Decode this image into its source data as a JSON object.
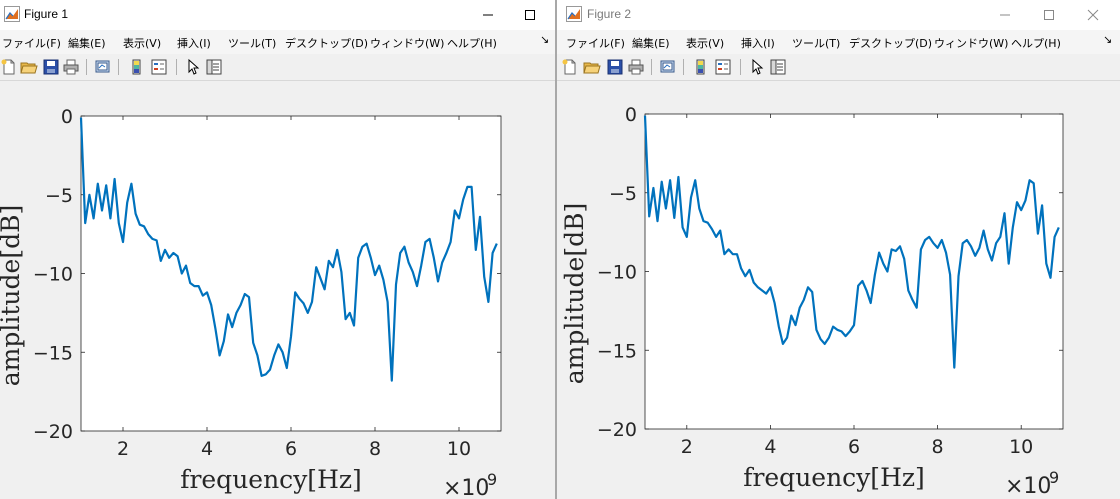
{
  "windows": [
    {
      "title": "Figure 1",
      "menu": [
        "ファイル(F)",
        "編集(E)",
        "表示(V)",
        "挿入(I)",
        "ツール(T)",
        "デスクトップ(D)",
        "ウィンドウ(W)",
        "ヘルプ(H)"
      ],
      "toolbar_icons": [
        "new-file-icon",
        "open-folder-icon",
        "save-icon",
        "print-icon",
        "link-plot-icon",
        "colorbar-icon",
        "legend-icon",
        "pointer-icon",
        "property-editor-icon"
      ],
      "chart_data": {
        "type": "line",
        "xlabel": "frequency[Hz]",
        "ylabel": "amplitude[dB]",
        "x_multiplier": "×10",
        "x_multiplier_exponent": "9",
        "xlim": [
          1,
          11
        ],
        "ylim": [
          -20,
          0
        ],
        "xticks": [
          2,
          4,
          6,
          8,
          10
        ],
        "xtick_labels": [
          "2",
          "4",
          "6",
          "8",
          "10"
        ],
        "yticks": [
          0,
          -5,
          -10,
          -15,
          -20
        ],
        "ytick_labels": [
          "0",
          "−5",
          "−10",
          "−15",
          "−20"
        ],
        "grid": false,
        "line_color": "#0072BD",
        "series": [
          {
            "x": [
              1.0,
              1.1,
              1.2,
              1.3,
              1.4,
              1.5,
              1.6,
              1.7,
              1.8,
              1.9,
              2.0,
              2.1,
              2.2,
              2.3,
              2.4,
              2.5,
              2.6,
              2.7,
              2.8,
              2.9,
              3.0,
              3.1,
              3.2,
              3.3,
              3.4,
              3.5,
              3.6,
              3.7,
              3.8,
              3.9,
              4.0,
              4.1,
              4.2,
              4.3,
              4.4,
              4.5,
              4.6,
              4.7,
              4.8,
              4.9,
              5.0,
              5.1,
              5.2,
              5.3,
              5.4,
              5.5,
              5.6,
              5.7,
              5.8,
              5.9,
              6.0,
              6.1,
              6.2,
              6.3,
              6.4,
              6.5,
              6.6,
              6.7,
              6.8,
              6.9,
              7.0,
              7.1,
              7.2,
              7.3,
              7.4,
              7.5,
              7.6,
              7.7,
              7.8,
              7.9,
              8.0,
              8.1,
              8.2,
              8.3,
              8.4,
              8.5,
              8.6,
              8.7,
              8.8,
              8.9,
              9.0,
              9.1,
              9.2,
              9.3,
              9.4,
              9.5,
              9.6,
              9.7,
              9.8,
              9.9,
              10.0,
              10.1,
              10.2,
              10.3,
              10.4,
              10.5,
              10.6,
              10.7,
              10.8,
              10.9
            ],
            "y": [
              -0.1,
              -6.8,
              -5.0,
              -6.5,
              -4.3,
              -6.0,
              -4.4,
              -6.5,
              -4.0,
              -6.8,
              -8.0,
              -5.5,
              -4.3,
              -6.2,
              -6.9,
              -7.0,
              -7.5,
              -7.8,
              -7.9,
              -9.2,
              -8.5,
              -9.0,
              -8.7,
              -8.9,
              -10.0,
              -9.5,
              -10.6,
              -10.8,
              -10.8,
              -11.4,
              -11.2,
              -12.0,
              -13.5,
              -15.2,
              -14.3,
              -12.6,
              -13.4,
              -12.5,
              -12.0,
              -11.3,
              -11.5,
              -14.4,
              -15.2,
              -16.5,
              -16.4,
              -16.1,
              -15.2,
              -14.5,
              -15.0,
              -16.0,
              -14.0,
              -11.2,
              -11.6,
              -11.9,
              -12.5,
              -11.8,
              -9.6,
              -10.3,
              -11.0,
              -9.2,
              -9.6,
              -8.5,
              -9.9,
              -12.9,
              -12.5,
              -13.3,
              -9.0,
              -8.3,
              -8.1,
              -9.0,
              -10.1,
              -9.5,
              -10.4,
              -11.8,
              -16.8,
              -10.7,
              -8.7,
              -8.3,
              -9.3,
              -9.9,
              -10.8,
              -9.5,
              -8.0,
              -7.8,
              -9.0,
              -10.5,
              -9.3,
              -8.7,
              -8.0,
              -6.0,
              -6.5,
              -5.3,
              -4.5,
              -4.5,
              -8.5,
              -6.4,
              -10.2,
              -11.8,
              -8.7,
              -8.1
            ]
          }
        ]
      }
    },
    {
      "title": "Figure 2",
      "menu": [
        "ファイル(F)",
        "編集(E)",
        "表示(V)",
        "挿入(I)",
        "ツール(T)",
        "デスクトップ(D)",
        "ウィンドウ(W)",
        "ヘルプ(H)"
      ],
      "toolbar_icons": [
        "new-file-icon",
        "open-folder-icon",
        "save-icon",
        "print-icon",
        "link-plot-icon",
        "colorbar-icon",
        "legend-icon",
        "pointer-icon",
        "property-editor-icon"
      ],
      "chart_data": {
        "type": "line",
        "xlabel": "frequency[Hz]",
        "ylabel": "amplitude[dB]",
        "x_multiplier": "×10",
        "x_multiplier_exponent": "9",
        "xlim": [
          1,
          11
        ],
        "ylim": [
          -20,
          0
        ],
        "xticks": [
          2,
          4,
          6,
          8,
          10
        ],
        "xtick_labels": [
          "2",
          "4",
          "6",
          "8",
          "10"
        ],
        "yticks": [
          0,
          -5,
          -10,
          -15,
          -20
        ],
        "ytick_labels": [
          "0",
          "−5",
          "−10",
          "−15",
          "−20"
        ],
        "grid": false,
        "line_color": "#0072BD",
        "series": [
          {
            "x": [
              1.0,
              1.1,
              1.2,
              1.3,
              1.4,
              1.5,
              1.6,
              1.7,
              1.8,
              1.9,
              2.0,
              2.1,
              2.2,
              2.3,
              2.4,
              2.5,
              2.6,
              2.7,
              2.8,
              2.9,
              3.0,
              3.1,
              3.2,
              3.3,
              3.4,
              3.5,
              3.6,
              3.7,
              3.8,
              3.9,
              4.0,
              4.1,
              4.2,
              4.3,
              4.4,
              4.5,
              4.6,
              4.7,
              4.8,
              4.9,
              5.0,
              5.1,
              5.2,
              5.3,
              5.4,
              5.5,
              5.6,
              5.7,
              5.8,
              5.9,
              6.0,
              6.1,
              6.2,
              6.3,
              6.4,
              6.5,
              6.6,
              6.7,
              6.8,
              6.9,
              7.0,
              7.1,
              7.2,
              7.3,
              7.4,
              7.5,
              7.6,
              7.7,
              7.8,
              7.9,
              8.0,
              8.1,
              8.2,
              8.3,
              8.4,
              8.5,
              8.6,
              8.7,
              8.8,
              8.9,
              9.0,
              9.1,
              9.2,
              9.3,
              9.4,
              9.5,
              9.6,
              9.7,
              9.8,
              9.9,
              10.0,
              10.1,
              10.2,
              10.3,
              10.4,
              10.5,
              10.6,
              10.7,
              10.8,
              10.9
            ],
            "y": [
              -0.1,
              -6.5,
              -4.7,
              -6.8,
              -4.3,
              -6.0,
              -4.2,
              -6.6,
              -4.0,
              -7.2,
              -7.8,
              -5.3,
              -4.2,
              -6.0,
              -6.8,
              -6.9,
              -7.3,
              -7.8,
              -7.4,
              -8.9,
              -8.6,
              -8.9,
              -8.9,
              -9.8,
              -10.3,
              -9.9,
              -10.7,
              -11.0,
              -11.2,
              -11.4,
              -11.0,
              -12.0,
              -13.5,
              -14.6,
              -14.2,
              -12.8,
              -13.4,
              -12.3,
              -11.8,
              -11.0,
              -11.3,
              -13.7,
              -14.3,
              -14.6,
              -14.2,
              -13.5,
              -13.7,
              -13.8,
              -14.1,
              -13.8,
              -13.4,
              -10.9,
              -10.6,
              -11.2,
              -12.0,
              -10.2,
              -8.8,
              -9.5,
              -10.0,
              -8.6,
              -8.7,
              -8.4,
              -9.2,
              -11.2,
              -11.8,
              -12.3,
              -8.6,
              -8.0,
              -7.8,
              -8.2,
              -8.5,
              -8.0,
              -8.8,
              -10.2,
              -16.1,
              -10.3,
              -8.2,
              -8.0,
              -8.4,
              -9.0,
              -8.5,
              -7.4,
              -8.6,
              -9.3,
              -8.2,
              -7.8,
              -6.3,
              -9.5,
              -7.2,
              -5.6,
              -6.1,
              -5.5,
              -4.2,
              -4.4,
              -7.6,
              -5.8,
              -9.5,
              -10.4,
              -7.8,
              -7.2
            ]
          }
        ]
      }
    }
  ],
  "colors": {
    "plot_line": "#0072BD",
    "matlab_orange": "#E07020"
  }
}
